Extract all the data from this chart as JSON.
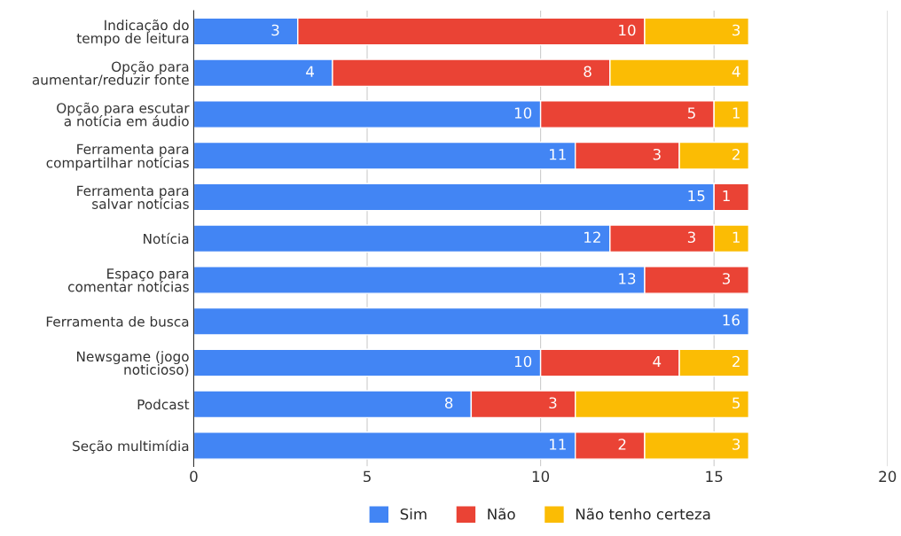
{
  "chart_data": {
    "type": "bar",
    "orientation": "horizontal",
    "stacked": true,
    "categories": [
      "Indicação do tempo de leitura",
      "Opção para aumentar/reduzir fonte",
      "Opção para escutar a notícia em áudio",
      "Ferramenta para compartilhar notícias",
      "Ferramenta para salvar notícias",
      "Notícia",
      "Espaço para comentar notícias",
      "Ferramenta de busca",
      "Newsgame (jogo noticioso)",
      "Podcast",
      "Seção multimídia"
    ],
    "series": [
      {
        "name": "Sim",
        "color": "#4285f4",
        "values": [
          3,
          4,
          10,
          11,
          15,
          12,
          13,
          16,
          10,
          8,
          11
        ]
      },
      {
        "name": "Não",
        "color": "#ea4335",
        "values": [
          10,
          8,
          5,
          3,
          1,
          3,
          3,
          null,
          4,
          3,
          2
        ]
      },
      {
        "name": "Não tenho certeza",
        "color": "#fbbc04",
        "values": [
          3,
          4,
          1,
          2,
          null,
          1,
          null,
          null,
          2,
          5,
          3
        ]
      }
    ],
    "xlim": [
      0,
      20
    ],
    "xticks": [
      0,
      5,
      10,
      15,
      20
    ],
    "grid": "x",
    "legend": "bottom",
    "data_labels": true
  }
}
